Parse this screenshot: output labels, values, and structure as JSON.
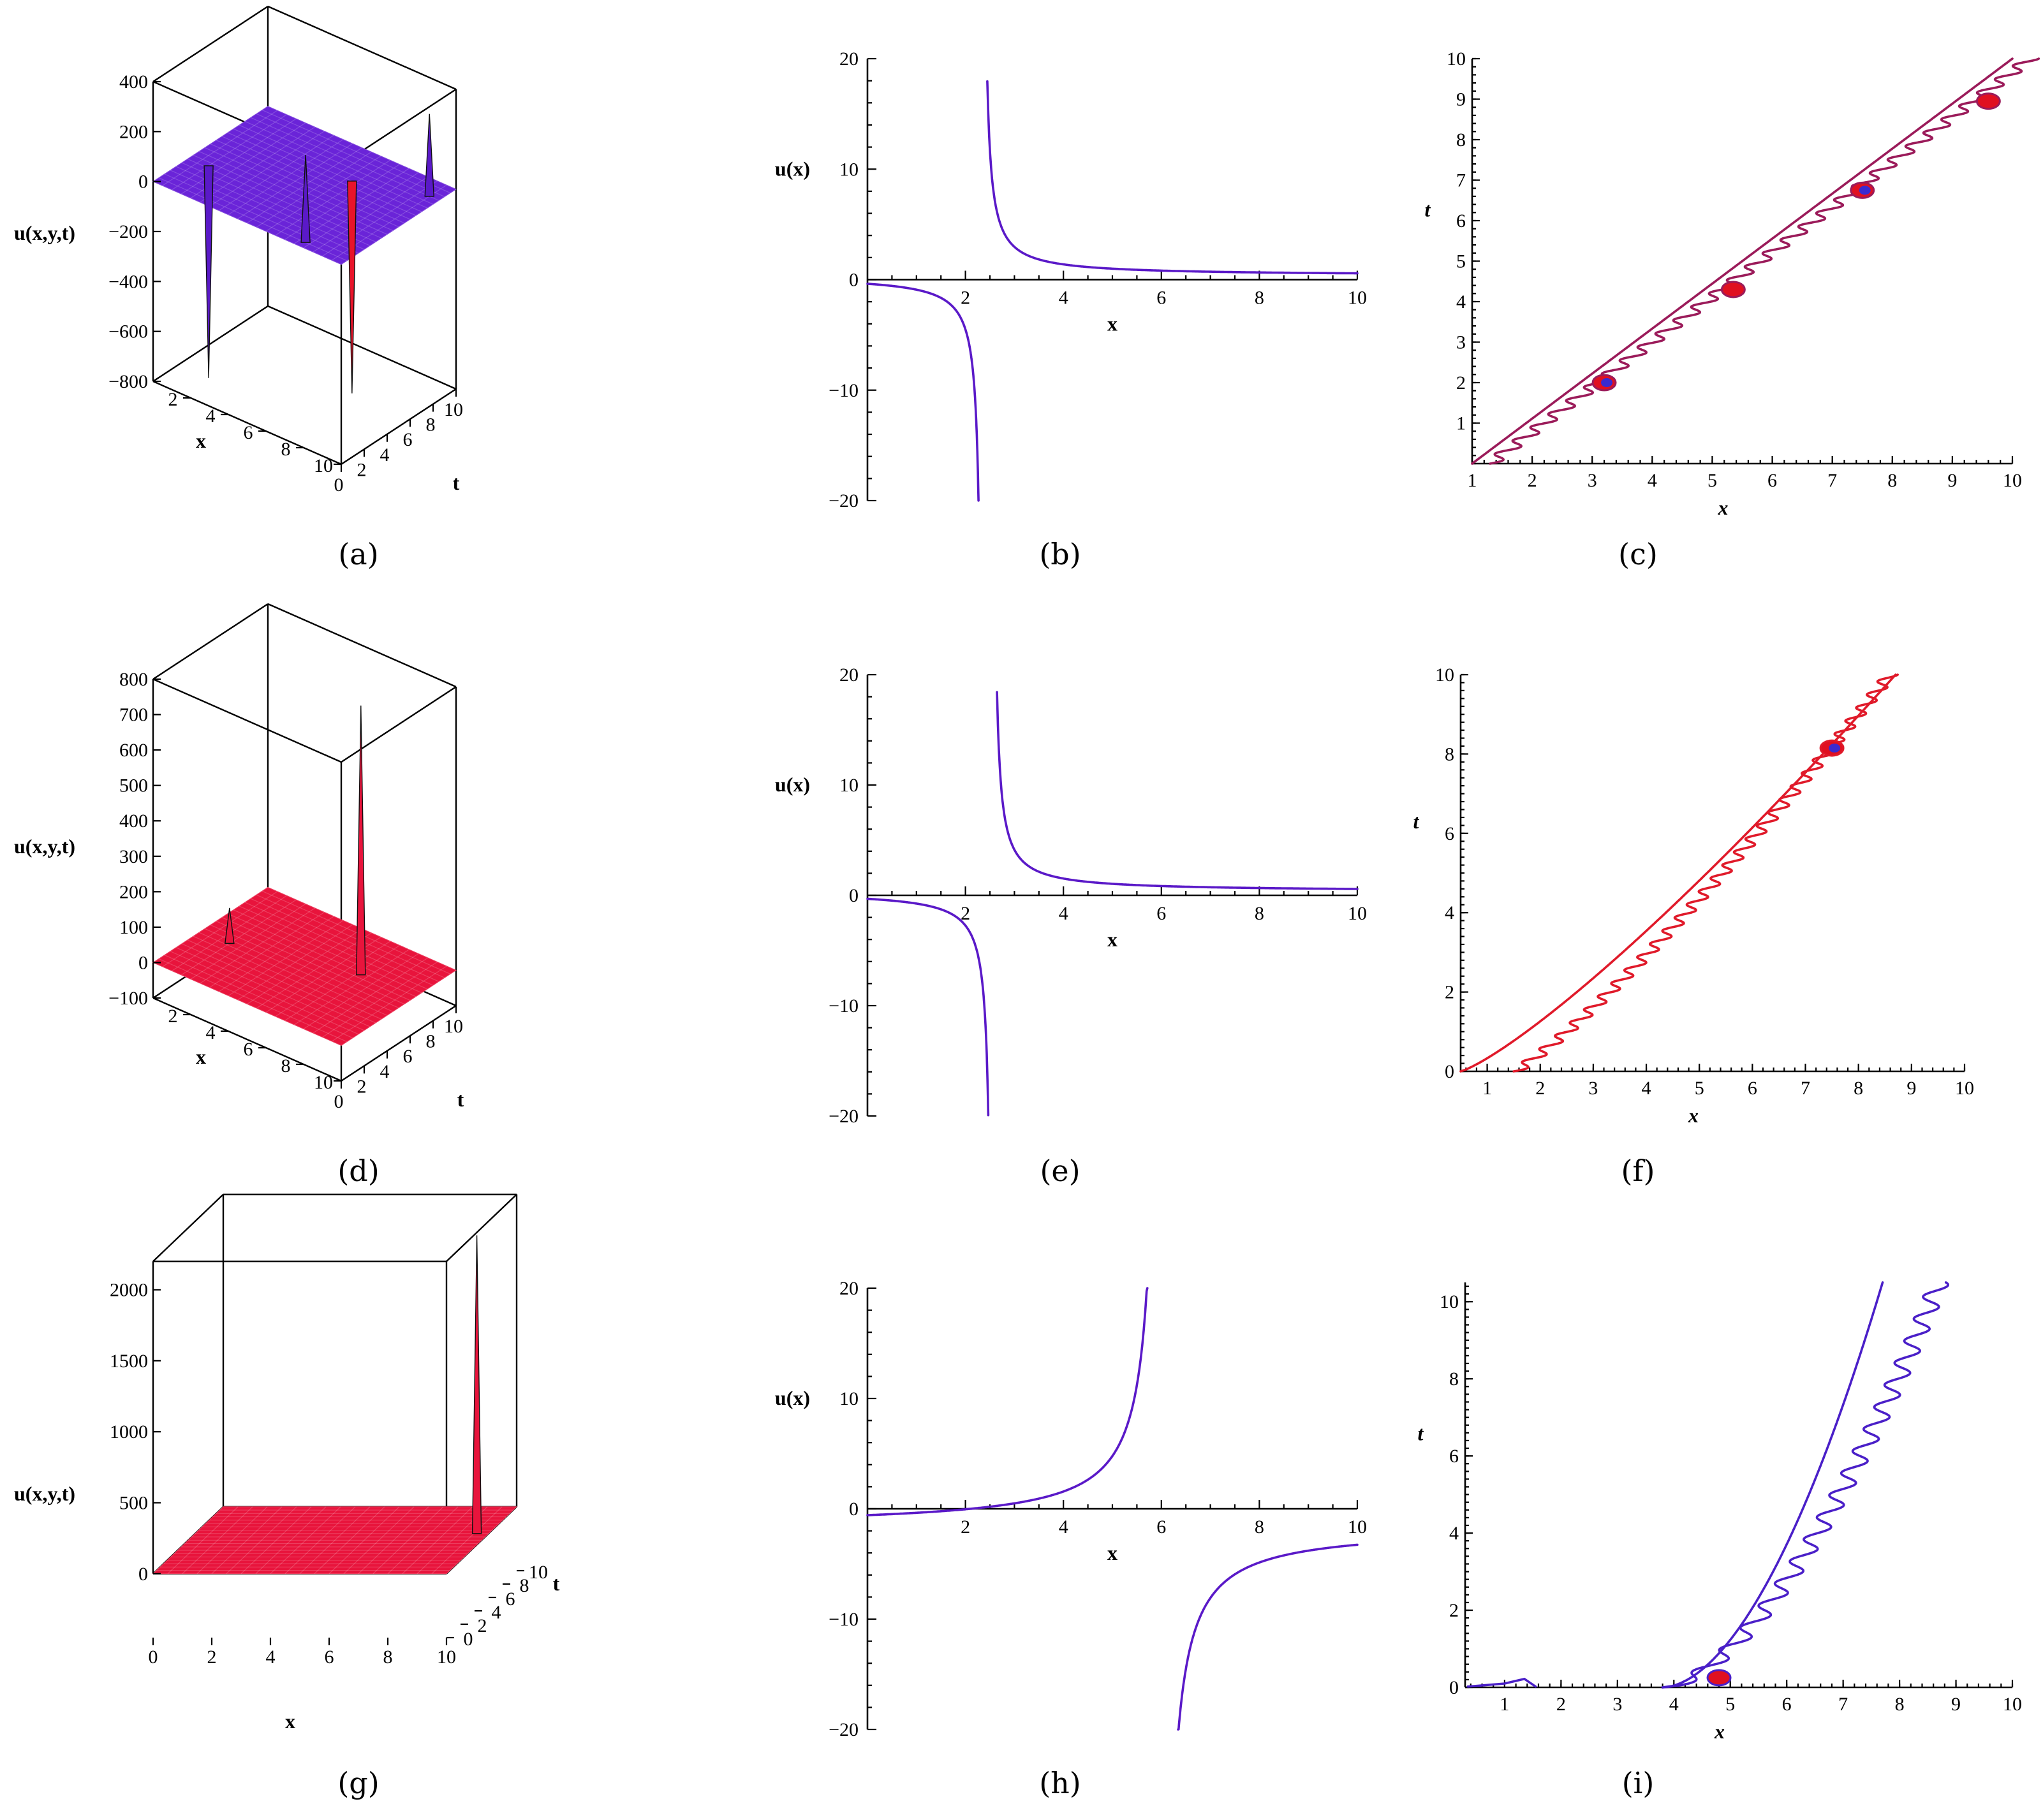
{
  "colors": {
    "blue_purple": "#5a19c8",
    "surface_a": "#6a24d8",
    "surface_red": "#e8143c",
    "contour_a": "#9b1b5a",
    "contour_f": "#e01a2a",
    "contour_i": "#4a1fc8",
    "spot_red": "#e01020",
    "spot_blue": "#3a2ad0"
  },
  "captions": [
    "(a)",
    "(b)",
    "(c)",
    "(d)",
    "(e)",
    "(f)",
    "(g)",
    "(h)",
    "(i)"
  ],
  "chart_data": [
    {
      "id": "a",
      "type": "surface3d",
      "caption": "(a)",
      "zlabel": "u(x,y,t)",
      "xlabel": "x",
      "tlabel": "t",
      "z_ticks": [
        "400",
        "200",
        "0",
        "−200",
        "−400",
        "−600",
        "−800"
      ],
      "x_ticks": [
        "2",
        "4",
        "6",
        "8",
        "10"
      ],
      "t_ticks": [
        "0",
        "2",
        "4",
        "6",
        "8",
        "10"
      ],
      "zlim": [
        -800,
        400
      ],
      "xlim": [
        0,
        10
      ],
      "tlim": [
        0,
        10
      ],
      "spikes": [
        {
          "x": 1.0,
          "t": 3.2,
          "z": -850
        },
        {
          "x": 6.3,
          "t": 7.0,
          "z": -850
        },
        {
          "x": 7.8,
          "t": 0.5,
          "z": 350
        },
        {
          "x": 9.5,
          "t": 8.5,
          "z": 330
        }
      ]
    },
    {
      "id": "b",
      "type": "line",
      "caption": "(b)",
      "xlabel": "x",
      "ylabel": "u(x)",
      "xlim": [
        0,
        10
      ],
      "ylim": [
        -20,
        20
      ],
      "x_ticks": [
        "2",
        "4",
        "6",
        "8",
        "10"
      ],
      "y_ticks": [
        "−20",
        "−10",
        "0",
        "10",
        "20"
      ],
      "pole": 2.35
    },
    {
      "id": "c",
      "type": "contour",
      "caption": "(c)",
      "xlabel": "x",
      "ylabel": "t",
      "xlim": [
        1,
        10
      ],
      "ylim": [
        0,
        10
      ],
      "x_ticks": [
        "1",
        "2",
        "3",
        "4",
        "5",
        "6",
        "7",
        "8",
        "9",
        "10"
      ],
      "y_ticks": [
        "1",
        "2",
        "3",
        "4",
        "5",
        "6",
        "7",
        "8",
        "9",
        "10"
      ],
      "spots": [
        {
          "x": 3.2,
          "t": 2.0,
          "c": "blue"
        },
        {
          "x": 5.35,
          "t": 4.3,
          "c": "red"
        },
        {
          "x": 7.5,
          "t": 6.75,
          "c": "blue"
        },
        {
          "x": 9.6,
          "t": 8.95,
          "c": "red"
        }
      ]
    },
    {
      "id": "d",
      "type": "surface3d",
      "caption": "(d)",
      "zlabel": "u(x,y,t)",
      "xlabel": "x",
      "tlabel": "t",
      "z_ticks": [
        "800",
        "700",
        "600",
        "500",
        "400",
        "300",
        "200",
        "100",
        "0",
        "−100"
      ],
      "x_ticks": [
        "2",
        "4",
        "6",
        "8",
        "10"
      ],
      "t_ticks": [
        "0",
        "2",
        "4",
        "6",
        "8",
        "10"
      ],
      "zlim": [
        -100,
        800
      ],
      "xlim": [
        0,
        10
      ],
      "tlim": [
        0,
        10
      ],
      "spikes": [
        {
          "x": 7.2,
          "t": 6.3,
          "z": 760
        },
        {
          "x": 1.5,
          "t": 4.2,
          "z": 100
        }
      ]
    },
    {
      "id": "e",
      "type": "line",
      "caption": "(e)",
      "xlabel": "x",
      "ylabel": "u(x)",
      "xlim": [
        0,
        10
      ],
      "ylim": [
        -20,
        20
      ],
      "x_ticks": [
        "2",
        "4",
        "6",
        "8",
        "10"
      ],
      "y_ticks": [
        "−20",
        "−10",
        "0",
        "10",
        "20"
      ],
      "pole": 2.55
    },
    {
      "id": "f",
      "type": "contour",
      "caption": "(f)",
      "xlabel": "x",
      "ylabel": "t",
      "xlim": [
        0.5,
        10
      ],
      "ylim": [
        0,
        10
      ],
      "x_ticks": [
        "1",
        "2",
        "3",
        "4",
        "5",
        "6",
        "7",
        "8",
        "9",
        "10"
      ],
      "y_ticks": [
        "0",
        "2",
        "4",
        "6",
        "8",
        "10"
      ],
      "spots": [
        {
          "x": 7.5,
          "t": 8.15,
          "c": "blue"
        }
      ]
    },
    {
      "id": "g",
      "type": "surface3d",
      "caption": "(g)",
      "zlabel": "u(x,y,t)",
      "xlabel": "x",
      "tlabel": "t",
      "z_ticks": [
        "2000",
        "1500",
        "1000",
        "500",
        "0"
      ],
      "x_ticks": [
        "0",
        "2",
        "4",
        "6",
        "8",
        "10"
      ],
      "t_ticks": [
        "0",
        "2",
        "4",
        "6",
        "8",
        "10"
      ],
      "zlim": [
        0,
        2200
      ],
      "xlim": [
        0,
        10
      ],
      "tlim": [
        0,
        10
      ],
      "spikes": [
        {
          "x": 9.6,
          "t": 6.0,
          "z": 2100
        }
      ]
    },
    {
      "id": "h",
      "type": "line",
      "caption": "(h)",
      "xlabel": "x",
      "ylabel": "u(x)",
      "xlim": [
        0,
        10
      ],
      "ylim": [
        -20,
        20
      ],
      "x_ticks": [
        "2",
        "4",
        "6",
        "8",
        "10"
      ],
      "y_ticks": [
        "−20",
        "−10",
        "0",
        "10",
        "20"
      ],
      "pole": 6.0,
      "root": 2.1
    },
    {
      "id": "i",
      "type": "contour",
      "caption": "(i)",
      "xlabel": "x",
      "ylabel": "t",
      "xlim": [
        0.3,
        10
      ],
      "ylim": [
        0,
        10.5
      ],
      "x_ticks": [
        "1",
        "2",
        "3",
        "4",
        "5",
        "6",
        "7",
        "8",
        "9",
        "10"
      ],
      "y_ticks": [
        "0",
        "2",
        "4",
        "6",
        "8",
        "10"
      ],
      "spots": [
        {
          "x": 4.8,
          "t": 0.25,
          "c": "red"
        }
      ]
    }
  ]
}
